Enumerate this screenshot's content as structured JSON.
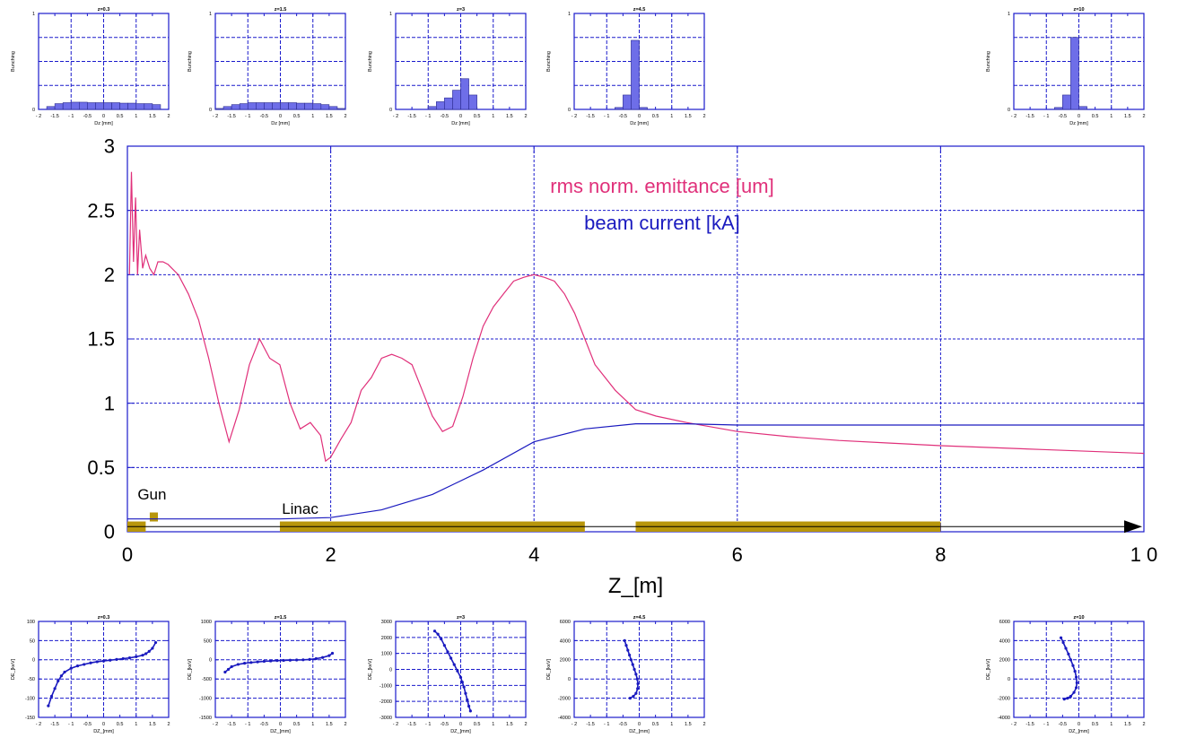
{
  "colors": {
    "frame": "#1a1acc",
    "emittance": "#e0307a",
    "current": "#1a1abf",
    "hist_bar": "#6e6ee8",
    "element": "#b8960c",
    "axis_text": "#000000"
  },
  "chart_data": [
    {
      "type": "line",
      "xlabel": "Z_[m]",
      "ylabel": "",
      "xlim": [
        0,
        10
      ],
      "ylim": [
        0,
        3
      ],
      "x_ticks": [
        "0",
        "2",
        "4",
        "6",
        "8",
        "1 0"
      ],
      "x_tick_values": [
        0,
        2,
        4,
        6,
        8,
        10
      ],
      "y_ticks": [
        "0",
        "0.5",
        "1",
        "1.5",
        "2",
        "2.5",
        "3"
      ],
      "y_tick_values": [
        0,
        0.5,
        1,
        1.5,
        2,
        2.5,
        3
      ],
      "grid": true,
      "legend": [
        {
          "label": "rms norm. emittance [um]",
          "color": "#e0307a"
        },
        {
          "label": "beam current [kA]",
          "color": "#1a1abf"
        }
      ],
      "series": [
        {
          "name": "rms norm. emittance [um]",
          "x": [
            0.02,
            0.04,
            0.06,
            0.08,
            0.1,
            0.12,
            0.15,
            0.18,
            0.22,
            0.26,
            0.3,
            0.35,
            0.4,
            0.5,
            0.6,
            0.7,
            0.8,
            0.9,
            1.0,
            1.1,
            1.2,
            1.3,
            1.4,
            1.5,
            1.6,
            1.7,
            1.8,
            1.9,
            1.95,
            2.0,
            2.05,
            2.1,
            2.2,
            2.3,
            2.4,
            2.5,
            2.6,
            2.7,
            2.8,
            2.9,
            3.0,
            3.1,
            3.2,
            3.3,
            3.4,
            3.5,
            3.6,
            3.7,
            3.8,
            3.9,
            4.0,
            4.1,
            4.2,
            4.3,
            4.4,
            4.5,
            4.6,
            4.8,
            5.0,
            5.2,
            5.5,
            6.0,
            6.5,
            7.0,
            7.5,
            8.0,
            9.0,
            10.0
          ],
          "y": [
            2.0,
            2.8,
            2.1,
            2.6,
            2.0,
            2.35,
            2.05,
            2.15,
            2.05,
            2.0,
            2.1,
            2.1,
            2.08,
            2.0,
            1.85,
            1.65,
            1.35,
            1.0,
            0.7,
            0.95,
            1.3,
            1.5,
            1.35,
            1.3,
            1.0,
            0.8,
            0.85,
            0.75,
            0.55,
            0.58,
            0.65,
            0.72,
            0.85,
            1.1,
            1.2,
            1.35,
            1.38,
            1.35,
            1.3,
            1.1,
            0.9,
            0.78,
            0.82,
            1.05,
            1.35,
            1.6,
            1.75,
            1.85,
            1.95,
            1.98,
            2.0,
            1.98,
            1.95,
            1.85,
            1.7,
            1.5,
            1.3,
            1.1,
            0.95,
            0.9,
            0.85,
            0.78,
            0.74,
            0.71,
            0.69,
            0.67,
            0.64,
            0.61
          ]
        },
        {
          "name": "beam current [kA]",
          "x": [
            0.0,
            1.0,
            1.5,
            2.0,
            2.5,
            3.0,
            3.5,
            4.0,
            4.5,
            5.0,
            5.5,
            6.0,
            7.0,
            8.0,
            9.0,
            10.0
          ],
          "y": [
            0.1,
            0.1,
            0.1,
            0.11,
            0.17,
            0.29,
            0.48,
            0.7,
            0.8,
            0.84,
            0.84,
            0.83,
            0.83,
            0.83,
            0.83,
            0.83
          ]
        }
      ],
      "annotations": {
        "elements_labels": [
          "Gun",
          "Linac"
        ],
        "elements": [
          {
            "label": "Gun",
            "x_start": 0.0,
            "x_end": 0.18,
            "y_low": 0.0,
            "y_high": 0.08
          },
          {
            "label": "Gun",
            "x_start": 0.22,
            "x_end": 0.3,
            "y_low": 0.08,
            "y_high": 0.15
          },
          {
            "label": "Linac",
            "x_start": 1.5,
            "x_end": 4.5,
            "y_low": 0.0,
            "y_high": 0.08
          },
          {
            "label": "Linac",
            "x_start": 5.0,
            "x_end": 8.0,
            "y_low": 0.0,
            "y_high": 0.08
          }
        ]
      }
    },
    {
      "type": "bar",
      "panel": "histogram",
      "title": "z=0.3",
      "xlabel": "Dz [mm]",
      "ylabel": "Bunching",
      "xlim": [
        -2,
        2
      ],
      "ylim": [
        0,
        1
      ],
      "x_ticks": [
        "- 2",
        "-1.5",
        "- 1",
        "-0.5",
        "0",
        "0.5",
        "1",
        "1.5",
        "2"
      ],
      "y_ticks": [
        "0",
        "1"
      ],
      "x_tick_values": [
        -2,
        -1.5,
        -1,
        -0.5,
        0,
        0.5,
        1,
        1.5,
        2
      ],
      "y_tick_values": [
        0,
        1
      ],
      "bins": [
        -1.625,
        -1.375,
        -1.125,
        -0.875,
        -0.625,
        -0.375,
        -0.125,
        0.125,
        0.375,
        0.625,
        0.875,
        1.125,
        1.375,
        1.625
      ],
      "bin_width": 0.25,
      "values": [
        0.03,
        0.06,
        0.07,
        0.075,
        0.075,
        0.07,
        0.07,
        0.07,
        0.07,
        0.065,
        0.065,
        0.06,
        0.06,
        0.05
      ]
    },
    {
      "type": "bar",
      "panel": "histogram",
      "title": "z=1.5",
      "xlabel": "Dz [mm]",
      "ylabel": "Bunching",
      "xlim": [
        -2,
        2
      ],
      "ylim": [
        0,
        1
      ],
      "x_ticks": [
        "- 2",
        "-1.5",
        "- 1",
        "-0.5",
        "0",
        "0.5",
        "1",
        "1.5",
        "2"
      ],
      "y_ticks": [
        "0",
        "1"
      ],
      "x_tick_values": [
        -2,
        -1.5,
        -1,
        -0.5,
        0,
        0.5,
        1,
        1.5,
        2
      ],
      "y_tick_values": [
        0,
        1
      ],
      "bins": [
        -1.875,
        -1.625,
        -1.375,
        -1.125,
        -0.875,
        -0.625,
        -0.375,
        -0.125,
        0.125,
        0.375,
        0.625,
        0.875,
        1.125,
        1.375,
        1.625,
        1.875
      ],
      "bin_width": 0.25,
      "values": [
        0.01,
        0.03,
        0.05,
        0.06,
        0.07,
        0.07,
        0.07,
        0.07,
        0.07,
        0.07,
        0.065,
        0.065,
        0.06,
        0.05,
        0.03,
        0.01
      ]
    },
    {
      "type": "bar",
      "panel": "histogram",
      "title": "z=3",
      "xlabel": "Dz [mm]",
      "ylabel": "Bunching",
      "xlim": [
        -2,
        2
      ],
      "ylim": [
        0,
        1
      ],
      "x_ticks": [
        "- 2",
        "-1.5",
        "- 1",
        "-0.5",
        "0",
        "0.5",
        "1",
        "1.5",
        "2"
      ],
      "y_ticks": [
        "0",
        "1"
      ],
      "x_tick_values": [
        -2,
        -1.5,
        -1,
        -0.5,
        0,
        0.5,
        1,
        1.5,
        2
      ],
      "y_tick_values": [
        0,
        1
      ],
      "bins": [
        -0.875,
        -0.625,
        -0.375,
        -0.125,
        0.125,
        0.375
      ],
      "bin_width": 0.25,
      "values": [
        0.03,
        0.08,
        0.12,
        0.2,
        0.32,
        0.15
      ]
    },
    {
      "type": "bar",
      "panel": "histogram",
      "title": "z=4.5",
      "xlabel": "Dz [mm]",
      "ylabel": "Bunching",
      "xlim": [
        -2,
        2
      ],
      "ylim": [
        0,
        1
      ],
      "x_ticks": [
        "- 2",
        "-1.5",
        "- 1",
        "-0.5",
        "0",
        "0.5",
        "1",
        "1.5",
        "2"
      ],
      "y_ticks": [
        "0",
        "1"
      ],
      "x_tick_values": [
        -2,
        -1.5,
        -1,
        -0.5,
        0,
        0.5,
        1,
        1.5,
        2
      ],
      "y_tick_values": [
        0,
        1
      ],
      "bins": [
        -0.625,
        -0.375,
        -0.125,
        0.125
      ],
      "bin_width": 0.25,
      "values": [
        0.02,
        0.15,
        0.72,
        0.02
      ]
    },
    {
      "type": "bar",
      "panel": "histogram",
      "title": "z=10",
      "xlabel": "Dz [mm]",
      "ylabel": "Bunching",
      "xlim": [
        -2,
        2
      ],
      "ylim": [
        0,
        1
      ],
      "x_ticks": [
        "- 2",
        "-1.5",
        "- 1",
        "-0.5",
        "0",
        "0.5",
        "1",
        "1.5",
        "2"
      ],
      "y_ticks": [
        "0",
        "1"
      ],
      "x_tick_values": [
        -2,
        -1.5,
        -1,
        -0.5,
        0,
        0.5,
        1,
        1.5,
        2
      ],
      "y_tick_values": [
        0,
        1
      ],
      "bins": [
        -0.625,
        -0.375,
        -0.125,
        0.125
      ],
      "bin_width": 0.25,
      "values": [
        0.02,
        0.15,
        0.75,
        0.03
      ]
    },
    {
      "type": "scatter",
      "panel": "phase-space",
      "title": "z=0.3",
      "xlabel": "DZ_[mm]",
      "ylabel": "DE_[keV]",
      "xlim": [
        -2,
        2
      ],
      "ylim": [
        -150,
        100
      ],
      "x_ticks": [
        "- 2",
        "-1.5",
        "- 1",
        "-0.5",
        "0",
        "0.5",
        "1",
        "1.5",
        "2"
      ],
      "y_ticks": [
        "-150",
        "-100",
        "-50",
        "0",
        "50",
        "100"
      ],
      "x_tick_values": [
        -2,
        -1.5,
        -1,
        -0.5,
        0,
        0.5,
        1,
        1.5,
        2
      ],
      "y_tick_values": [
        -150,
        -100,
        -50,
        0,
        50,
        100
      ],
      "x": [
        -1.7,
        -1.6,
        -1.5,
        -1.4,
        -1.3,
        -1.2,
        -1.0,
        -0.8,
        -0.6,
        -0.4,
        -0.2,
        0.0,
        0.2,
        0.4,
        0.6,
        0.8,
        1.0,
        1.2,
        1.3,
        1.4,
        1.5,
        1.6
      ],
      "y": [
        -120,
        -95,
        -75,
        -55,
        -42,
        -32,
        -22,
        -16,
        -12,
        -8,
        -5,
        -3,
        -1,
        1,
        3,
        5,
        8,
        12,
        16,
        22,
        30,
        45
      ]
    },
    {
      "type": "scatter",
      "panel": "phase-space",
      "title": "z=1.5",
      "xlabel": "DZ_[mm]",
      "ylabel": "DE_[keV]",
      "xlim": [
        -2,
        2
      ],
      "ylim": [
        -1500,
        1000
      ],
      "x_ticks": [
        "- 2",
        "-1.5",
        "- 1",
        "-0.5",
        "0",
        "0.5",
        "1",
        "1.5",
        "2"
      ],
      "y_ticks": [
        "-1500",
        "-1000",
        "-500",
        "0",
        "500",
        "1000"
      ],
      "x_tick_values": [
        -2,
        -1.5,
        -1,
        -0.5,
        0,
        0.5,
        1,
        1.5,
        2
      ],
      "y_tick_values": [
        -1500,
        -1000,
        -500,
        0,
        500,
        1000
      ],
      "x": [
        -1.7,
        -1.6,
        -1.5,
        -1.3,
        -1.1,
        -0.9,
        -0.7,
        -0.5,
        -0.3,
        -0.1,
        0.1,
        0.3,
        0.5,
        0.7,
        0.9,
        1.1,
        1.3,
        1.5,
        1.6
      ],
      "y": [
        -320,
        -250,
        -180,
        -120,
        -90,
        -70,
        -55,
        -40,
        -30,
        -20,
        -15,
        -10,
        -5,
        0,
        10,
        30,
        60,
        110,
        170
      ]
    },
    {
      "type": "scatter",
      "panel": "phase-space",
      "title": "z=3",
      "xlabel": "DZ_[mm]",
      "ylabel": "DE_[keV]",
      "xlim": [
        -2,
        2
      ],
      "ylim": [
        -3000,
        3000
      ],
      "x_ticks": [
        "- 2",
        "-1.5",
        "- 1",
        "-0.5",
        "0",
        "0.5",
        "1",
        "1.5",
        "2"
      ],
      "y_ticks": [
        "-3000",
        "-2000",
        "-1000",
        "0",
        "1000",
        "2000",
        "3000"
      ],
      "x_tick_values": [
        -2,
        -1.5,
        -1,
        -0.5,
        0,
        0.5,
        1,
        1.5,
        2
      ],
      "y_tick_values": [
        -3000,
        -2000,
        -1000,
        0,
        1000,
        2000,
        3000
      ],
      "x": [
        -0.8,
        -0.7,
        -0.6,
        -0.5,
        -0.4,
        -0.3,
        -0.2,
        -0.1,
        0.0,
        0.05,
        0.1,
        0.15,
        0.2,
        0.25,
        0.3
      ],
      "y": [
        2400,
        2200,
        1900,
        1500,
        1100,
        700,
        300,
        -100,
        -500,
        -800,
        -1100,
        -1500,
        -1900,
        -2300,
        -2600
      ]
    },
    {
      "type": "scatter",
      "panel": "phase-space",
      "title": "z=4.5",
      "xlabel": "DZ_[mm]",
      "ylabel": "DE_[keV]",
      "xlim": [
        -2,
        2
      ],
      "ylim": [
        -4000,
        6000
      ],
      "x_ticks": [
        "- 2",
        "-1.5",
        "- 1",
        "-0.5",
        "0",
        "0.5",
        "1",
        "1.5",
        "2"
      ],
      "y_ticks": [
        "-4000",
        "-2000",
        "0",
        "2000",
        "4000",
        "6000"
      ],
      "x_tick_values": [
        -2,
        -1.5,
        -1,
        -0.5,
        0,
        0.5,
        1,
        1.5,
        2
      ],
      "y_tick_values": [
        -4000,
        -2000,
        0,
        2000,
        4000,
        6000
      ],
      "x": [
        -0.45,
        -0.4,
        -0.35,
        -0.3,
        -0.25,
        -0.2,
        -0.15,
        -0.1,
        -0.06,
        -0.04,
        -0.05,
        -0.1,
        -0.18,
        -0.28
      ],
      "y": [
        4000,
        3500,
        3000,
        2500,
        2000,
        1500,
        1000,
        500,
        0,
        -500,
        -1000,
        -1500,
        -1800,
        -2000
      ]
    },
    {
      "type": "scatter",
      "panel": "phase-space",
      "title": "z=10",
      "xlabel": "DZ_[mm]",
      "ylabel": "DE_[keV]",
      "xlim": [
        -2,
        2
      ],
      "ylim": [
        -4000,
        6000
      ],
      "x_ticks": [
        "- 2",
        "-1.5",
        "- 1",
        "-0.5",
        "0",
        "0.5",
        "1",
        "1.5",
        "2"
      ],
      "y_ticks": [
        "-4000",
        "-2000",
        "0",
        "2000",
        "4000",
        "6000"
      ],
      "x_tick_values": [
        -2,
        -1.5,
        -1,
        -0.5,
        0,
        0.5,
        1,
        1.5,
        2
      ],
      "y_tick_values": [
        -4000,
        -2000,
        0,
        2000,
        4000,
        6000
      ],
      "x": [
        -0.55,
        -0.48,
        -0.4,
        -0.32,
        -0.25,
        -0.18,
        -0.12,
        -0.08,
        -0.06,
        -0.08,
        -0.15,
        -0.25,
        -0.35,
        -0.45
      ],
      "y": [
        4300,
        3800,
        3200,
        2600,
        2000,
        1400,
        800,
        200,
        -400,
        -900,
        -1400,
        -1800,
        -2000,
        -2100
      ]
    }
  ]
}
